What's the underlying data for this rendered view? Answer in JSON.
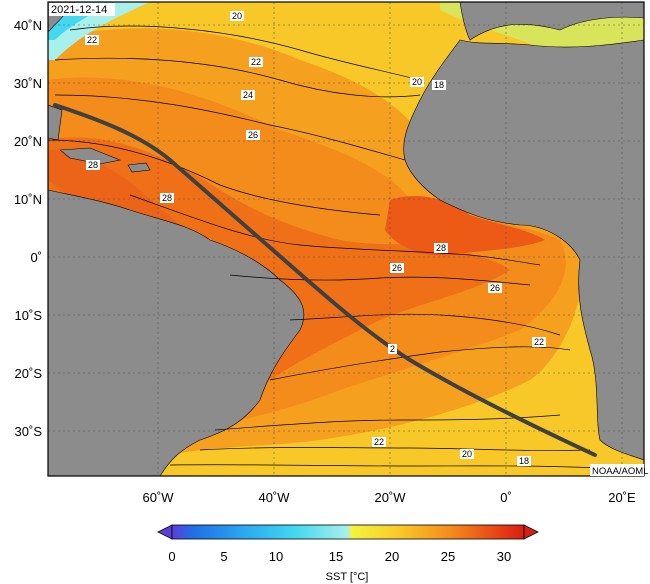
{
  "map": {
    "date": "2021-12-14",
    "credit": "NOAA/AOML",
    "lat_labels": [
      "40˚N",
      "30˚N",
      "20˚N",
      "10˚N",
      "0˚",
      "10˚S",
      "20˚S",
      "30˚S"
    ],
    "lon_labels": [
      "60˚W",
      "40˚W",
      "20˚W",
      "0˚",
      "20˚E"
    ],
    "contour_labels": [
      "20",
      "22",
      "22",
      "24",
      "26",
      "28",
      "28",
      "20",
      "18",
      "28",
      "26",
      "26",
      "22",
      "22",
      "20",
      "18",
      "2"
    ]
  },
  "colorbar": {
    "label": "SST [°C]",
    "ticks": [
      "0",
      "5",
      "10",
      "15",
      "20",
      "25",
      "30"
    ],
    "range": [
      -2,
      32
    ],
    "colors": {
      "c_n2": "#5b3fd8",
      "c_0": "#1f6fe8",
      "c_5": "#2aa6f0",
      "c_10": "#43d8f0",
      "c_15": "#a8f0ec",
      "c_17": "#f4f43c",
      "c_20": "#f8c828",
      "c_25": "#f48c1c",
      "c_30": "#e83a14",
      "c_32": "#d42010"
    }
  },
  "colors": {
    "land": "#8c8c8c",
    "track": "#404040",
    "frame": "#000000"
  }
}
